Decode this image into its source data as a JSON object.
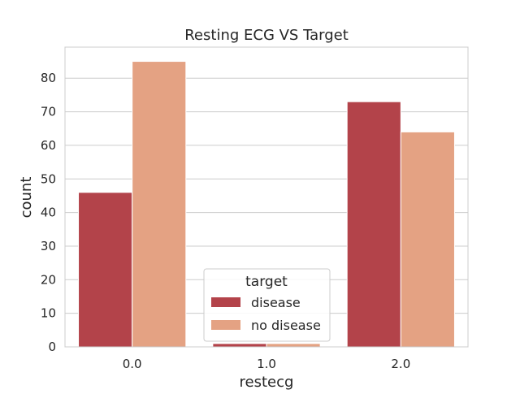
{
  "chart_data": {
    "type": "bar",
    "title": "Resting ECG VS Target",
    "xlabel": "restecg",
    "ylabel": "count",
    "categories": [
      "0.0",
      "1.0",
      "2.0"
    ],
    "series": [
      {
        "name": "disease",
        "values": [
          46,
          1,
          73
        ]
      },
      {
        "name": "no disease",
        "values": [
          85,
          1,
          64
        ]
      }
    ],
    "ylim": [
      0,
      89.25
    ],
    "yticks": [
      "0",
      "10",
      "20",
      "30",
      "40",
      "50",
      "60",
      "70",
      "80"
    ],
    "grid": true,
    "legend": {
      "title": "target",
      "position": "lower-center"
    },
    "colors": {
      "disease": "#b3434a",
      "no disease": "#e4a283",
      "grid": "#cccccc",
      "spine": "#cccccc"
    }
  }
}
